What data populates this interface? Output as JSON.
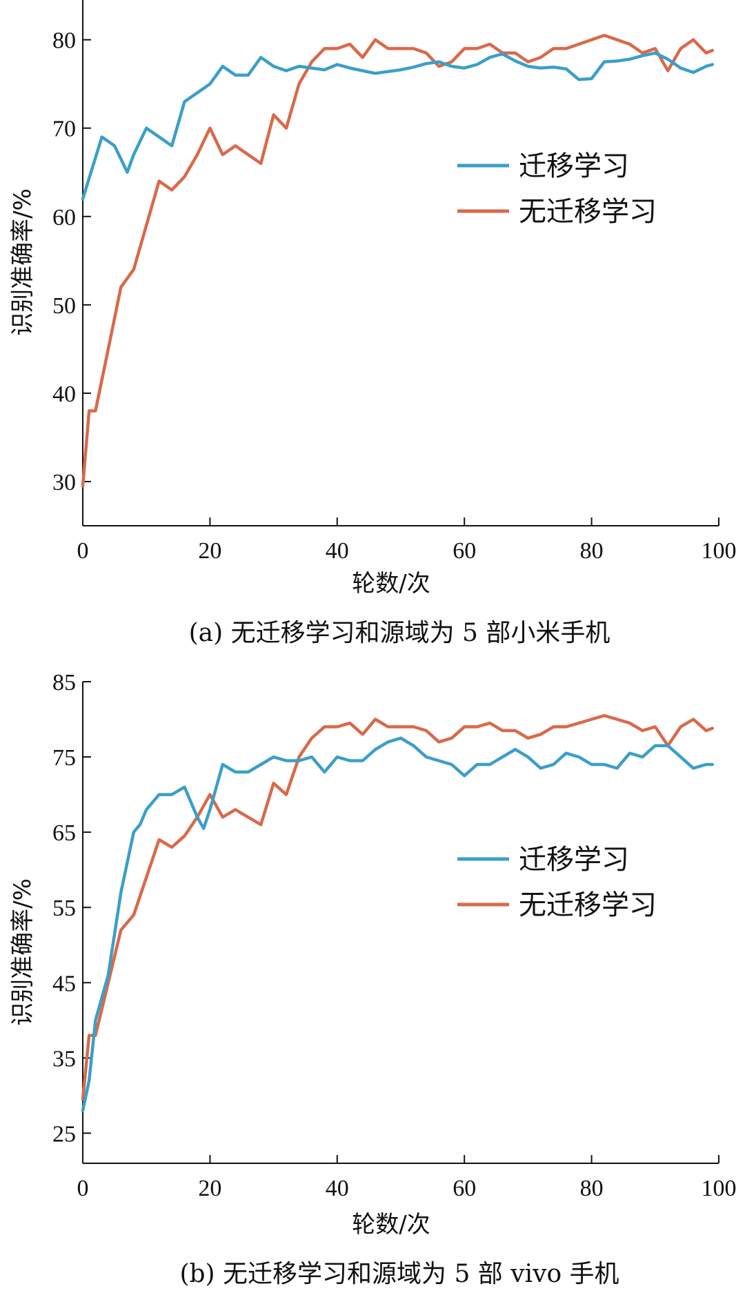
{
  "colors": {
    "transfer": "#3a9fc9",
    "no_transfer": "#d9694a",
    "axis": "#111111"
  },
  "chart_data": [
    {
      "type": "line",
      "caption": "(a) 无迁移学习和源域为 5 部小米手机",
      "xlabel": "轮数/次",
      "ylabel": "识别准确率/%",
      "xlim": [
        0,
        100
      ],
      "ylim": [
        25,
        84.5
      ],
      "xticks": [
        0,
        20,
        40,
        60,
        80,
        100
      ],
      "yticks": [
        30,
        40,
        50,
        60,
        70,
        80
      ],
      "grid": false,
      "legend_position": "right",
      "series": [
        {
          "name": "迁移学习",
          "color_key": "transfer",
          "x": [
            0,
            3,
            5,
            7,
            8,
            10,
            12,
            14,
            16,
            18,
            20,
            22,
            24,
            26,
            28,
            30,
            32,
            34,
            36,
            38,
            40,
            42,
            44,
            46,
            48,
            50,
            52,
            54,
            56,
            58,
            60,
            62,
            64,
            66,
            68,
            70,
            72,
            74,
            76,
            78,
            80,
            82,
            84,
            86,
            88,
            90,
            92,
            94,
            96,
            98,
            99
          ],
          "y": [
            62,
            69,
            68,
            65,
            67,
            70,
            69,
            68,
            73,
            74,
            75,
            77,
            76,
            76,
            78,
            77,
            76.5,
            77,
            76.8,
            76.6,
            77.2,
            76.8,
            76.5,
            76.2,
            76.4,
            76.6,
            76.9,
            77.3,
            77.5,
            77,
            76.8,
            77.2,
            78,
            78.4,
            77.6,
            77,
            76.8,
            76.9,
            76.7,
            75.5,
            75.6,
            77.5,
            77.6,
            77.8,
            78.2,
            78.5,
            77.8,
            76.8,
            76.3,
            77,
            77.2
          ]
        },
        {
          "name": "无迁移学习",
          "color_key": "no_transfer",
          "x": [
            0,
            1,
            2,
            4,
            6,
            8,
            10,
            12,
            14,
            16,
            18,
            20,
            22,
            24,
            26,
            28,
            30,
            32,
            34,
            36,
            38,
            40,
            42,
            44,
            46,
            48,
            50,
            52,
            54,
            56,
            58,
            60,
            62,
            64,
            66,
            68,
            70,
            72,
            74,
            76,
            78,
            80,
            82,
            84,
            86,
            88,
            90,
            92,
            94,
            96,
            98,
            99
          ],
          "y": [
            29.5,
            38,
            38,
            45,
            52,
            54,
            59,
            64,
            63,
            64.5,
            67,
            70,
            67,
            68,
            67,
            66,
            71.5,
            70,
            75,
            77.5,
            79,
            79,
            79.5,
            78,
            80,
            79,
            79,
            79,
            78.5,
            77,
            77.5,
            79,
            79,
            79.5,
            78.5,
            78.5,
            77.5,
            78,
            79,
            79,
            79.5,
            80,
            80.5,
            80,
            79.5,
            78.5,
            79,
            76.5,
            79,
            80,
            78.5,
            78.8
          ]
        }
      ]
    },
    {
      "type": "line",
      "caption": "(b) 无迁移学习和源域为 5 部 vivo 手机",
      "xlabel": "轮数/次",
      "ylabel": "识别准确率/%",
      "xlim": [
        0,
        100
      ],
      "ylim": [
        21,
        85
      ],
      "xticks": [
        0,
        20,
        40,
        60,
        80,
        100
      ],
      "yticks": [
        25,
        35,
        45,
        55,
        65,
        75,
        85
      ],
      "grid": false,
      "legend_position": "right",
      "series": [
        {
          "name": "迁移学习",
          "color_key": "transfer",
          "x": [
            0,
            1,
            2,
            4,
            6,
            8,
            9,
            10,
            12,
            14,
            16,
            18,
            19,
            20,
            22,
            24,
            26,
            28,
            30,
            32,
            34,
            36,
            38,
            40,
            42,
            44,
            46,
            48,
            50,
            52,
            54,
            56,
            58,
            60,
            62,
            64,
            66,
            68,
            70,
            72,
            74,
            76,
            78,
            80,
            82,
            84,
            86,
            88,
            90,
            92,
            94,
            96,
            98,
            99
          ],
          "y": [
            28,
            32,
            40,
            46,
            57,
            65,
            66,
            68,
            70,
            70,
            71,
            67,
            65.5,
            68,
            74,
            73,
            73,
            74,
            75,
            74.5,
            74.5,
            75,
            73,
            75,
            74.5,
            74.5,
            76,
            77,
            77.5,
            76.5,
            75,
            74.5,
            74,
            72.5,
            74,
            74,
            75,
            76,
            75,
            73.5,
            74,
            75.5,
            75,
            74,
            74,
            73.5,
            75.5,
            75,
            76.5,
            76.5,
            75,
            73.5,
            74,
            74
          ]
        },
        {
          "name": "无迁移学习",
          "color_key": "no_transfer",
          "x": [
            0,
            1,
            2,
            4,
            6,
            8,
            10,
            12,
            14,
            16,
            18,
            20,
            22,
            24,
            26,
            28,
            30,
            32,
            34,
            36,
            38,
            40,
            42,
            44,
            46,
            48,
            50,
            52,
            54,
            56,
            58,
            60,
            62,
            64,
            66,
            68,
            70,
            72,
            74,
            76,
            78,
            80,
            82,
            84,
            86,
            88,
            90,
            92,
            94,
            96,
            98,
            99
          ],
          "y": [
            29.5,
            38,
            38,
            45,
            52,
            54,
            59,
            64,
            63,
            64.5,
            67,
            70,
            67,
            68,
            67,
            66,
            71.5,
            70,
            75,
            77.5,
            79,
            79,
            79.5,
            78,
            80,
            79,
            79,
            79,
            78.5,
            77,
            77.5,
            79,
            79,
            79.5,
            78.5,
            78.5,
            77.5,
            78,
            79,
            79,
            79.5,
            80,
            80.5,
            80,
            79.5,
            78.5,
            79,
            76.5,
            79,
            80,
            78.5,
            78.8
          ]
        }
      ]
    }
  ]
}
